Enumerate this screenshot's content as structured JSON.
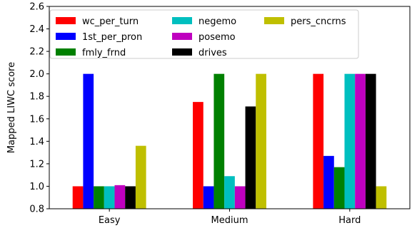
{
  "chart_data": {
    "type": "bar",
    "title": "",
    "xlabel": "",
    "ylabel": "Mapped LIWC score",
    "ylim": [
      0.8,
      2.6
    ],
    "yticks": [
      "0.8",
      "1.0",
      "1.2",
      "1.4",
      "1.6",
      "1.8",
      "2.0",
      "2.2",
      "2.4",
      "2.6"
    ],
    "grid": false,
    "legend_position": "top-left",
    "legend_columns": 3,
    "categories": [
      "Easy",
      "Medium",
      "Hard"
    ],
    "series": [
      {
        "name": "wc_per_turn",
        "color": "#ff0000",
        "values": [
          1.0,
          1.75,
          2.0
        ]
      },
      {
        "name": "1st_per_pron",
        "color": "#0000ff",
        "values": [
          2.0,
          1.0,
          1.27
        ]
      },
      {
        "name": "fmly_frnd",
        "color": "#008000",
        "values": [
          1.0,
          2.0,
          1.17
        ]
      },
      {
        "name": "negemo",
        "color": "#00bfbf",
        "values": [
          1.0,
          1.09,
          2.0
        ]
      },
      {
        "name": "posemo",
        "color": "#bf00bf",
        "values": [
          1.01,
          1.0,
          2.0
        ]
      },
      {
        "name": "drives",
        "color": "#000000",
        "values": [
          1.0,
          1.71,
          2.0
        ]
      },
      {
        "name": "pers_cncrns",
        "color": "#bfbf00",
        "values": [
          1.36,
          2.0,
          1.0
        ]
      }
    ]
  }
}
